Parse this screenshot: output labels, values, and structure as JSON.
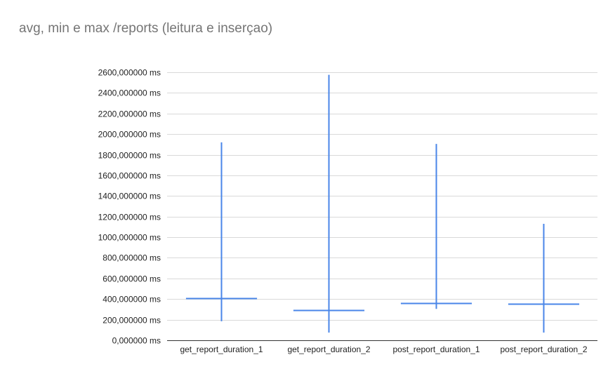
{
  "chart_data": {
    "type": "candlestick",
    "title": "avg, min e max /reports (leitura e inserçao)",
    "xlabel": "",
    "ylabel": "",
    "unit": "ms",
    "ylim": [
      0,
      2600
    ],
    "yticks": [
      0,
      200,
      400,
      600,
      800,
      1000,
      1200,
      1400,
      1600,
      1800,
      2000,
      2200,
      2400,
      2600
    ],
    "ytick_labels": [
      "0,000000  ms",
      "200,000000  ms",
      "400,000000  ms",
      "600,000000  ms",
      "800,000000  ms",
      "1000,000000  ms",
      "1200,000000  ms",
      "1400,000000  ms",
      "1600,000000  ms",
      "1800,000000  ms",
      "2000,000000  ms",
      "2200,000000  ms",
      "2400,000000  ms",
      "2600,000000  ms"
    ],
    "grid": true,
    "color": "#4a86e8",
    "categories": [
      "get_report_duration_1",
      "get_report_duration_2",
      "post_report_duration_1",
      "post_report_duration_2"
    ],
    "min": [
      185,
      75,
      305,
      75
    ],
    "avg": [
      405,
      290,
      360,
      355
    ],
    "max": [
      1920,
      2575,
      1905,
      1130
    ]
  }
}
